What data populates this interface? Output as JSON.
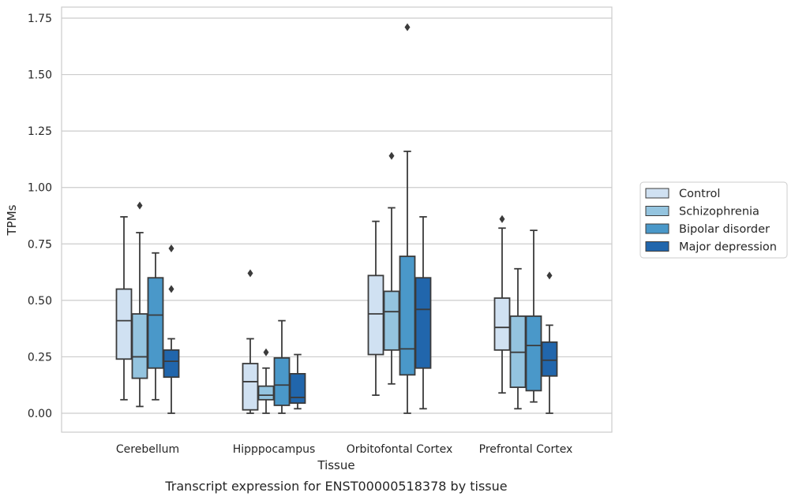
{
  "chart_data": {
    "type": "boxplot",
    "caption": "Transcript expression for ENST00000518378 by tissue",
    "xlabel": "Tissue",
    "ylabel": "TPMs",
    "ylim": [
      -0.08,
      1.81
    ],
    "yticks": [
      "0.00",
      "0.25",
      "0.50",
      "0.75",
      "1.00",
      "1.25",
      "1.50",
      "1.75"
    ],
    "ytick_values": [
      0,
      0.25,
      0.5,
      0.75,
      1.0,
      1.25,
      1.5,
      1.75
    ],
    "grid": true,
    "legend_position": "right",
    "categories": [
      "Cerebellum",
      "Hipppocampus",
      "Orbitofontal Cortex",
      "Prefrontal Cortex"
    ],
    "series": [
      {
        "name": "Control",
        "color": "#d0e1f2",
        "boxes": [
          {
            "whisker_low": 0.06,
            "q1": 0.24,
            "median": 0.41,
            "q3": 0.55,
            "whisker_high": 0.87,
            "outliers": []
          },
          {
            "whisker_low": 0.0,
            "q1": 0.015,
            "median": 0.14,
            "q3": 0.22,
            "whisker_high": 0.33,
            "outliers": [
              0.62
            ]
          },
          {
            "whisker_low": 0.08,
            "q1": 0.26,
            "median": 0.44,
            "q3": 0.61,
            "whisker_high": 0.85,
            "outliers": []
          },
          {
            "whisker_low": 0.09,
            "q1": 0.28,
            "median": 0.38,
            "q3": 0.51,
            "whisker_high": 0.82,
            "outliers": [
              0.86
            ]
          }
        ]
      },
      {
        "name": "Schizophrenia",
        "color": "#94c4df",
        "boxes": [
          {
            "whisker_low": 0.03,
            "q1": 0.155,
            "median": 0.25,
            "q3": 0.44,
            "whisker_high": 0.8,
            "outliers": [
              0.92
            ]
          },
          {
            "whisker_low": 0.0,
            "q1": 0.06,
            "median": 0.08,
            "q3": 0.12,
            "whisker_high": 0.2,
            "outliers": [
              0.27
            ]
          },
          {
            "whisker_low": 0.13,
            "q1": 0.28,
            "median": 0.45,
            "q3": 0.54,
            "whisker_high": 0.91,
            "outliers": [
              1.14
            ]
          },
          {
            "whisker_low": 0.02,
            "q1": 0.115,
            "median": 0.27,
            "q3": 0.43,
            "whisker_high": 0.64,
            "outliers": []
          }
        ]
      },
      {
        "name": "Bipolar disorder",
        "color": "#4a98c9",
        "boxes": [
          {
            "whisker_low": 0.06,
            "q1": 0.2,
            "median": 0.435,
            "q3": 0.6,
            "whisker_high": 0.71,
            "outliers": []
          },
          {
            "whisker_low": 0.0,
            "q1": 0.035,
            "median": 0.125,
            "q3": 0.245,
            "whisker_high": 0.41,
            "outliers": []
          },
          {
            "whisker_low": 0.0,
            "q1": 0.17,
            "median": 0.285,
            "q3": 0.695,
            "whisker_high": 1.16,
            "outliers": [
              1.71
            ]
          },
          {
            "whisker_low": 0.05,
            "q1": 0.1,
            "median": 0.3,
            "q3": 0.43,
            "whisker_high": 0.81,
            "outliers": []
          }
        ]
      },
      {
        "name": "Major depression",
        "color": "#2166ac",
        "boxes": [
          {
            "whisker_low": 0.0,
            "q1": 0.16,
            "median": 0.23,
            "q3": 0.28,
            "whisker_high": 0.33,
            "outliers": [
              0.55,
              0.73
            ]
          },
          {
            "whisker_low": 0.02,
            "q1": 0.045,
            "median": 0.07,
            "q3": 0.175,
            "whisker_high": 0.26,
            "outliers": []
          },
          {
            "whisker_low": 0.02,
            "q1": 0.2,
            "median": 0.46,
            "q3": 0.6,
            "whisker_high": 0.87,
            "outliers": []
          },
          {
            "whisker_low": 0.0,
            "q1": 0.165,
            "median": 0.235,
            "q3": 0.315,
            "whisker_high": 0.39,
            "outliers": [
              0.61
            ]
          }
        ]
      }
    ]
  }
}
